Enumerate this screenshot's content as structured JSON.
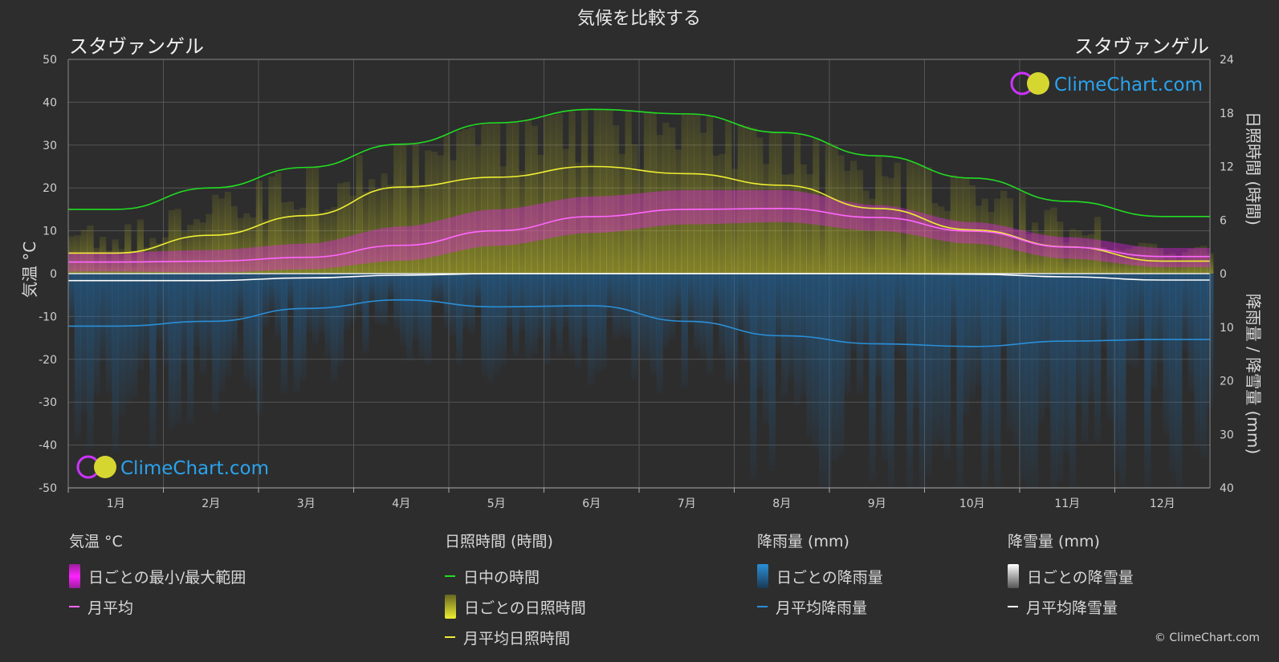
{
  "chart_title": "気候を比較する",
  "location_left": "スタヴァンゲル",
  "location_right": "スタヴァンゲル",
  "brand": "ClimeChart.com",
  "copyright": "© ClimeChart.com",
  "colors": {
    "background": "#2d2d2d",
    "daylight": "#22dd22",
    "sunshine_avg": "#eeee33",
    "temp_avg": "#ff66ff",
    "temp_range": "#ee22ee",
    "rain": "#2a8fd8",
    "snow": "#ffffff"
  },
  "chart_data": {
    "type": "line",
    "months": [
      "1月",
      "2月",
      "3月",
      "4月",
      "5月",
      "6月",
      "7月",
      "8月",
      "9月",
      "10月",
      "11月",
      "12月"
    ],
    "y_left": {
      "label": "気温 °C",
      "lim": [
        -50,
        50
      ],
      "ticks": [
        50,
        40,
        30,
        20,
        10,
        0,
        -10,
        -20,
        -30,
        -40,
        -50
      ]
    },
    "y_right_top": {
      "label": "日照時間 (時間)",
      "lim": [
        0,
        24
      ],
      "ticks": [
        24,
        18,
        12,
        6,
        0
      ]
    },
    "y_right_bottom": {
      "label": "降雨量 / 降雪量 (mm)",
      "lim": [
        0,
        40
      ],
      "ticks": [
        0,
        10,
        20,
        30,
        40
      ]
    },
    "grid": true,
    "series": [
      {
        "name": "日中の時間",
        "unit": "hours",
        "values": [
          7.2,
          9.6,
          11.9,
          14.5,
          16.9,
          18.4,
          17.9,
          15.8,
          13.2,
          10.7,
          8.1,
          6.4
        ]
      },
      {
        "name": "月平均日照時間",
        "unit": "hours",
        "values": [
          2.3,
          4.3,
          6.5,
          9.7,
          10.8,
          12.0,
          11.2,
          9.9,
          7.3,
          4.9,
          3.0,
          1.4
        ]
      },
      {
        "name": "月平均",
        "unit": "°C",
        "values": [
          2.7,
          2.9,
          3.8,
          6.6,
          10.0,
          13.3,
          15.0,
          15.2,
          13.1,
          9.9,
          6.2,
          4.0
        ]
      },
      {
        "name": "月平均降雨量",
        "unit": "mm",
        "values": [
          9.8,
          8.9,
          6.5,
          4.9,
          6.2,
          6.0,
          8.9,
          11.6,
          13.1,
          13.6,
          12.6,
          12.3
        ]
      },
      {
        "name": "月平均降雪量",
        "unit": "mm",
        "values": [
          1.3,
          1.3,
          0.8,
          0.3,
          0,
          0,
          0,
          0,
          0,
          0.1,
          0.6,
          1.2
        ]
      }
    ],
    "bands": [
      {
        "name": "日ごとの最小/最大範囲",
        "unit": "°C",
        "min": [
          0.5,
          0.2,
          1.0,
          3.0,
          6.5,
          9.5,
          11.5,
          12.0,
          10.0,
          7.0,
          3.5,
          1.5
        ],
        "max": [
          5.0,
          5.5,
          7.0,
          11.0,
          15.0,
          18.0,
          19.5,
          19.5,
          16.0,
          12.0,
          8.5,
          6.0
        ]
      }
    ]
  },
  "legend": {
    "groups": [
      {
        "title": "気温 °C",
        "items": [
          {
            "label": "日ごとの最小/最大範囲",
            "swatch": "box",
            "color": "#ee22ee"
          },
          {
            "label": "月平均",
            "swatch": "line",
            "color": "#ff66ff"
          }
        ]
      },
      {
        "title": "日照時間 (時間)",
        "items": [
          {
            "label": "日中の時間",
            "swatch": "line",
            "color": "#22dd22"
          },
          {
            "label": "日ごとの日照時間",
            "swatch": "box",
            "color": "#d8d830"
          },
          {
            "label": "月平均日照時間",
            "swatch": "line",
            "color": "#eeee33"
          }
        ]
      },
      {
        "title": "降雨量 (mm)",
        "items": [
          {
            "label": "日ごとの降雨量",
            "swatch": "box",
            "color": "#2a8fd8"
          },
          {
            "label": "月平均降雨量",
            "swatch": "line",
            "color": "#2a8fd8"
          }
        ]
      },
      {
        "title": "降雪量 (mm)",
        "items": [
          {
            "label": "日ごとの降雪量",
            "swatch": "box",
            "color": "#ffffff"
          },
          {
            "label": "月平均降雪量",
            "swatch": "line",
            "color": "#ffffff"
          }
        ]
      }
    ]
  }
}
